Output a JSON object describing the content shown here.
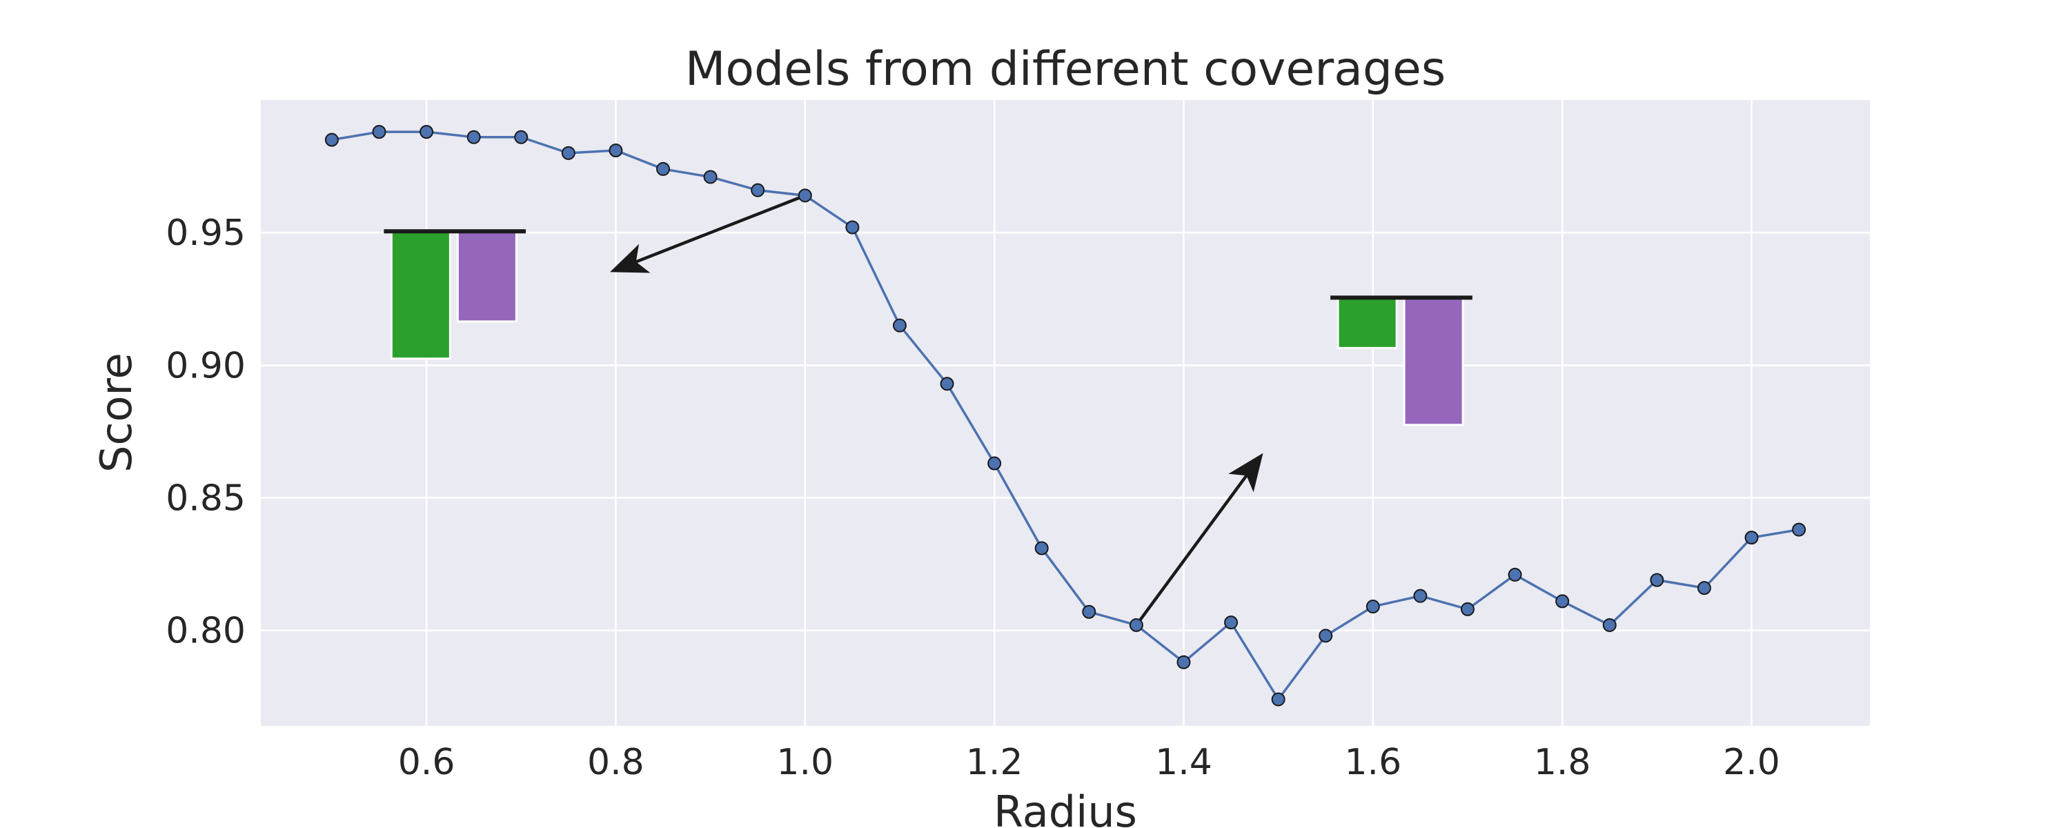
{
  "chart_data": {
    "type": "line",
    "title": "Models from different coverages",
    "xlabel": "Radius",
    "ylabel": "Score",
    "xlim": [
      0.425,
      2.125
    ],
    "ylim": [
      0.764,
      1.0
    ],
    "xticks": [
      "0.6",
      "0.8",
      "1.0",
      "1.2",
      "1.4",
      "1.6",
      "1.8",
      "2.0"
    ],
    "yticks": [
      "0.80",
      "0.85",
      "0.90",
      "0.95"
    ],
    "grid": true,
    "background": "#eaeaf2",
    "series": [
      {
        "color": "#4c72b0",
        "x": [
          0.5,
          0.55,
          0.6,
          0.65,
          0.7,
          0.75,
          0.8,
          0.85,
          0.9,
          0.95,
          1.0,
          1.05,
          1.1,
          1.15,
          1.2,
          1.25,
          1.3,
          1.35,
          1.4,
          1.45,
          1.5,
          1.55,
          1.6,
          1.65,
          1.7,
          1.75,
          1.8,
          1.85,
          1.9,
          1.95,
          2.0,
          2.05
        ],
        "y": [
          0.985,
          0.988,
          0.988,
          0.986,
          0.986,
          0.98,
          0.981,
          0.974,
          0.971,
          0.966,
          0.964,
          0.952,
          0.915,
          0.893,
          0.863,
          0.831,
          0.807,
          0.802,
          0.788,
          0.803,
          0.774,
          0.798,
          0.809,
          0.813,
          0.808,
          0.821,
          0.811,
          0.802,
          0.819,
          0.816,
          0.835,
          0.838
        ]
      }
    ],
    "insets": [
      {
        "baseline_x": [
          0.555,
          0.705
        ],
        "baseline_y": 0.9505,
        "bars": [
          {
            "x0": 0.563,
            "x1": 0.625,
            "y_bottom": 0.9025,
            "color": "#2ca02c"
          },
          {
            "x0": 0.633,
            "x1": 0.695,
            "y_bottom": 0.9165,
            "color": "#9467bd"
          }
        ]
      },
      {
        "baseline_x": [
          1.555,
          1.705
        ],
        "baseline_y": 0.9255,
        "bars": [
          {
            "x0": 1.563,
            "x1": 1.625,
            "y_bottom": 0.9065,
            "color": "#2ca02c"
          },
          {
            "x0": 1.633,
            "x1": 1.695,
            "y_bottom": 0.8775,
            "color": "#9467bd"
          }
        ]
      }
    ],
    "arrows": [
      {
        "from": [
          1.0,
          0.964
        ],
        "to": [
          0.8,
          0.936
        ]
      },
      {
        "from": [
          1.35,
          0.802
        ],
        "to": [
          1.48,
          0.865
        ]
      }
    ]
  }
}
